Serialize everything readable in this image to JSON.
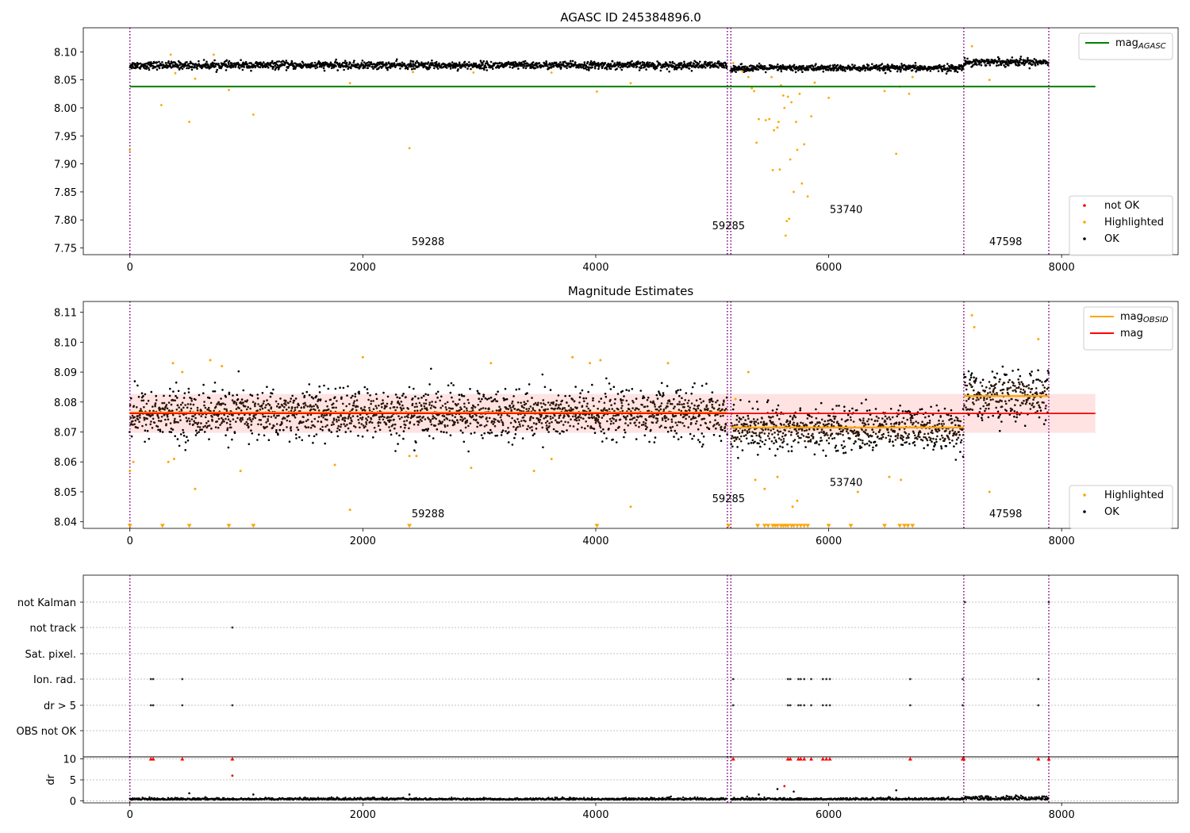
{
  "chart_data": [
    {
      "type": "scatter",
      "title": "AGASC ID 245384896.0",
      "xlabel": "",
      "ylabel": "",
      "xlim": [
        -400,
        9000
      ],
      "ylim": [
        7.738,
        8.143
      ],
      "xticks": [
        0,
        2000,
        4000,
        6000,
        8000
      ],
      "xtick_labels": [
        "0",
        "2000",
        "4000",
        "6000",
        "8000"
      ],
      "yticks": [
        7.75,
        7.8,
        7.85,
        7.9,
        7.95,
        8.0,
        8.05,
        8.1
      ],
      "ytick_labels": [
        "7.75",
        "7.80",
        "7.85",
        "7.90",
        "7.95",
        "8.00",
        "8.05",
        "8.10"
      ],
      "legend_location": "right",
      "legend_lines": [
        {
          "name": "mag",
          "sub": "AGASC",
          "color": "#008000"
        }
      ],
      "legend_markers": [
        {
          "name": "not OK",
          "color": "#ff0000"
        },
        {
          "name": "Highlighted",
          "color": "#ffa500"
        },
        {
          "name": "OK",
          "color": "#000000"
        }
      ],
      "vlines": [
        0,
        5130,
        5160,
        7160,
        7890
      ],
      "hline": {
        "series": "mag AGASC",
        "y": 8.038,
        "x": [
          0,
          8290
        ],
        "color": "#008000"
      },
      "annotations": [
        {
          "text": "59288",
          "x": 2560,
          "y": 7.755
        },
        {
          "text": "59285",
          "x": 5140,
          "y": 7.783
        },
        {
          "text": "53740",
          "x": 6150,
          "y": 7.812
        },
        {
          "text": "47598",
          "x": 7520,
          "y": 7.755
        }
      ],
      "segments": [
        {
          "x0": 0,
          "x1": 5130,
          "center": 8.076,
          "spread": 0.008
        },
        {
          "x0": 5160,
          "x1": 7160,
          "center": 8.071,
          "spread": 0.007
        },
        {
          "x0": 7160,
          "x1": 7890,
          "center": 8.082,
          "spread": 0.008
        }
      ],
      "highlighted_points": [
        [
          0,
          7.925
        ],
        [
          270,
          8.005
        ],
        [
          350,
          8.095
        ],
        [
          390,
          8.062
        ],
        [
          510,
          7.975
        ],
        [
          560,
          8.052
        ],
        [
          720,
          8.095
        ],
        [
          850,
          8.032
        ],
        [
          1060,
          7.988
        ],
        [
          1890,
          8.044
        ],
        [
          2400,
          7.928
        ],
        [
          2430,
          8.064
        ],
        [
          2950,
          8.063
        ],
        [
          3620,
          8.063
        ],
        [
          4010,
          8.029
        ],
        [
          4300,
          8.044
        ],
        [
          5180,
          8.08
        ],
        [
          5260,
          8.065
        ],
        [
          5310,
          8.055
        ],
        [
          5340,
          8.035
        ],
        [
          5360,
          8.03
        ],
        [
          5380,
          7.938
        ],
        [
          5400,
          7.98
        ],
        [
          5460,
          7.978
        ],
        [
          5490,
          7.98
        ],
        [
          5510,
          8.055
        ],
        [
          5520,
          7.889
        ],
        [
          5530,
          7.96
        ],
        [
          5560,
          7.965
        ],
        [
          5570,
          7.975
        ],
        [
          5580,
          7.89
        ],
        [
          5590,
          8.04
        ],
        [
          5610,
          8.022
        ],
        [
          5620,
          8.0
        ],
        [
          5630,
          7.772
        ],
        [
          5640,
          7.798
        ],
        [
          5650,
          8.02
        ],
        [
          5660,
          7.802
        ],
        [
          5670,
          7.908
        ],
        [
          5680,
          8.01
        ],
        [
          5700,
          7.85
        ],
        [
          5720,
          7.975
        ],
        [
          5730,
          7.925
        ],
        [
          5750,
          8.025
        ],
        [
          5770,
          7.865
        ],
        [
          5790,
          7.935
        ],
        [
          5820,
          7.842
        ],
        [
          5850,
          7.985
        ],
        [
          5880,
          8.045
        ],
        [
          6000,
          8.018
        ],
        [
          6480,
          8.03
        ],
        [
          6580,
          7.918
        ],
        [
          6610,
          8.038
        ],
        [
          6690,
          8.025
        ],
        [
          6720,
          8.055
        ],
        [
          7230,
          8.11
        ],
        [
          7380,
          8.05
        ]
      ],
      "notok_points": []
    },
    {
      "type": "scatter",
      "title": "Magnitude Estimates",
      "xlabel": "",
      "ylabel": "",
      "xlim": [
        -400,
        9000
      ],
      "ylim": [
        8.0378,
        8.1136
      ],
      "xticks": [
        0,
        2000,
        4000,
        6000,
        8000
      ],
      "xtick_labels": [
        "0",
        "2000",
        "4000",
        "6000",
        "8000"
      ],
      "yticks": [
        8.04,
        8.05,
        8.06,
        8.07,
        8.08,
        8.09,
        8.1,
        8.11
      ],
      "ytick_labels": [
        "8.04",
        "8.05",
        "8.06",
        "8.07",
        "8.08",
        "8.09",
        "8.10",
        "8.11"
      ],
      "legend_location": "right",
      "legend_lines": [
        {
          "name": "mag",
          "sub": "OBSID",
          "color": "#ffa500"
        },
        {
          "name": "mag",
          "sub": "",
          "color": "#ff0000"
        }
      ],
      "legend_markers": [
        {
          "name": "Highlighted",
          "color": "#ffa500"
        },
        {
          "name": "OK",
          "color": "#000000"
        }
      ],
      "vlines": [
        0,
        5130,
        5160,
        7160,
        7890
      ],
      "mag_line": {
        "y": 8.0762,
        "x": [
          0,
          8290
        ],
        "band": [
          8.0697,
          8.0827
        ]
      },
      "obsid_steps": [
        {
          "x0": 0,
          "x1": 5130,
          "y": 8.0765
        },
        {
          "x0": 5160,
          "x1": 7160,
          "y": 8.0715
        },
        {
          "x0": 7160,
          "x1": 7890,
          "y": 8.082
        }
      ],
      "annotations": [
        {
          "text": "59288",
          "x": 2560,
          "y": 8.0415
        },
        {
          "text": "59285",
          "x": 5140,
          "y": 8.0465
        },
        {
          "text": "53740",
          "x": 6150,
          "y": 8.052
        },
        {
          "text": "47598",
          "x": 7520,
          "y": 8.0415
        }
      ],
      "segments": [
        {
          "x0": 0,
          "x1": 5130,
          "center": 8.076,
          "spread": 0.008
        },
        {
          "x0": 5160,
          "x1": 7160,
          "center": 8.071,
          "spread": 0.007
        },
        {
          "x0": 7160,
          "x1": 7890,
          "center": 8.082,
          "spread": 0.008
        }
      ],
      "highlighted_points": [
        [
          0,
          8.057
        ],
        [
          30,
          8.06
        ],
        [
          330,
          8.06
        ],
        [
          370,
          8.093
        ],
        [
          380,
          8.061
        ],
        [
          450,
          8.09
        ],
        [
          560,
          8.051
        ],
        [
          690,
          8.094
        ],
        [
          790,
          8.092
        ],
        [
          950,
          8.057
        ],
        [
          1760,
          8.059
        ],
        [
          1890,
          8.044
        ],
        [
          2000,
          8.095
        ],
        [
          2400,
          8.062
        ],
        [
          2460,
          8.062
        ],
        [
          2930,
          8.058
        ],
        [
          3100,
          8.093
        ],
        [
          3470,
          8.057
        ],
        [
          3620,
          8.061
        ],
        [
          3800,
          8.095
        ],
        [
          3950,
          8.093
        ],
        [
          4040,
          8.094
        ],
        [
          4300,
          8.045
        ],
        [
          4620,
          8.093
        ],
        [
          5200,
          8.081
        ],
        [
          5310,
          8.09
        ],
        [
          5370,
          8.054
        ],
        [
          5450,
          8.051
        ],
        [
          5560,
          8.055
        ],
        [
          5690,
          8.045
        ],
        [
          5730,
          8.047
        ],
        [
          6250,
          8.05
        ],
        [
          6520,
          8.055
        ],
        [
          6620,
          8.054
        ],
        [
          7230,
          8.109
        ],
        [
          7250,
          8.105
        ],
        [
          7380,
          8.05
        ],
        [
          7800,
          8.101
        ]
      ],
      "floor_markers": [
        0,
        280,
        510,
        850,
        1060,
        2400,
        4010,
        5140,
        5390,
        5450,
        5480,
        5520,
        5540,
        5560,
        5590,
        5610,
        5630,
        5650,
        5680,
        5700,
        5730,
        5760,
        5790,
        5820,
        6000,
        6190,
        6480,
        6610,
        6650,
        6680,
        6720
      ],
      "floor_y": 8.0385
    },
    {
      "type": "scatter",
      "title": "",
      "xlabel": "",
      "ylabel": "",
      "xlim": [
        -400,
        9000
      ],
      "categories": [
        "not Kalman",
        "not track",
        "Sat. pixel.",
        "Ion. rad.",
        "dr > 5",
        "OBS not OK"
      ],
      "vlines": [
        0,
        5130,
        5160,
        7160,
        7890
      ],
      "flag_points": {
        "not Kalman": [
          7170,
          7890
        ],
        "not track": [
          880
        ],
        "Sat. pixel.": [],
        "Ion. rad.": [
          180,
          200,
          450,
          5180,
          5650,
          5670,
          5740,
          5760,
          5790,
          5850,
          5950,
          5980,
          6010,
          6700,
          7150,
          7800
        ],
        "dr > 5": [
          180,
          200,
          450,
          880,
          5180,
          5650,
          5670,
          5740,
          5760,
          5790,
          5850,
          5950,
          5980,
          6010,
          6700,
          7150,
          7800
        ],
        "OBS not OK": []
      }
    },
    {
      "type": "scatter",
      "title": "",
      "xlabel": "",
      "ylabel": "dr",
      "xlim": [
        -400,
        9000
      ],
      "ylim": [
        -0.5,
        10.5
      ],
      "xticks": [
        0,
        2000,
        4000,
        6000,
        8000
      ],
      "xtick_labels": [
        "0",
        "2000",
        "4000",
        "6000",
        "8000"
      ],
      "yticks": [
        0,
        5,
        10
      ],
      "ytick_labels": [
        "0",
        "5",
        "10"
      ],
      "vlines": [
        0,
        5130,
        5160,
        7160,
        7890
      ],
      "capped_points": [
        180,
        200,
        450,
        880,
        5180,
        5650,
        5670,
        5740,
        5760,
        5790,
        5850,
        5950,
        5980,
        6010,
        6700,
        7150,
        7160,
        7800,
        7890
      ],
      "outlier_points": [
        [
          880,
          6.0
        ],
        [
          510,
          1.8
        ],
        [
          1060,
          1.5
        ],
        [
          2400,
          1.5
        ],
        [
          5400,
          1.5
        ],
        [
          5560,
          2.8
        ],
        [
          5620,
          3.5
        ],
        [
          5700,
          2.2
        ],
        [
          6580,
          2.5
        ],
        [
          5300,
          1.0
        ]
      ],
      "outlier_red": [
        [
          5620,
          3.5
        ]
      ],
      "baseline": {
        "center": 0.25,
        "spread": 0.25
      }
    }
  ]
}
